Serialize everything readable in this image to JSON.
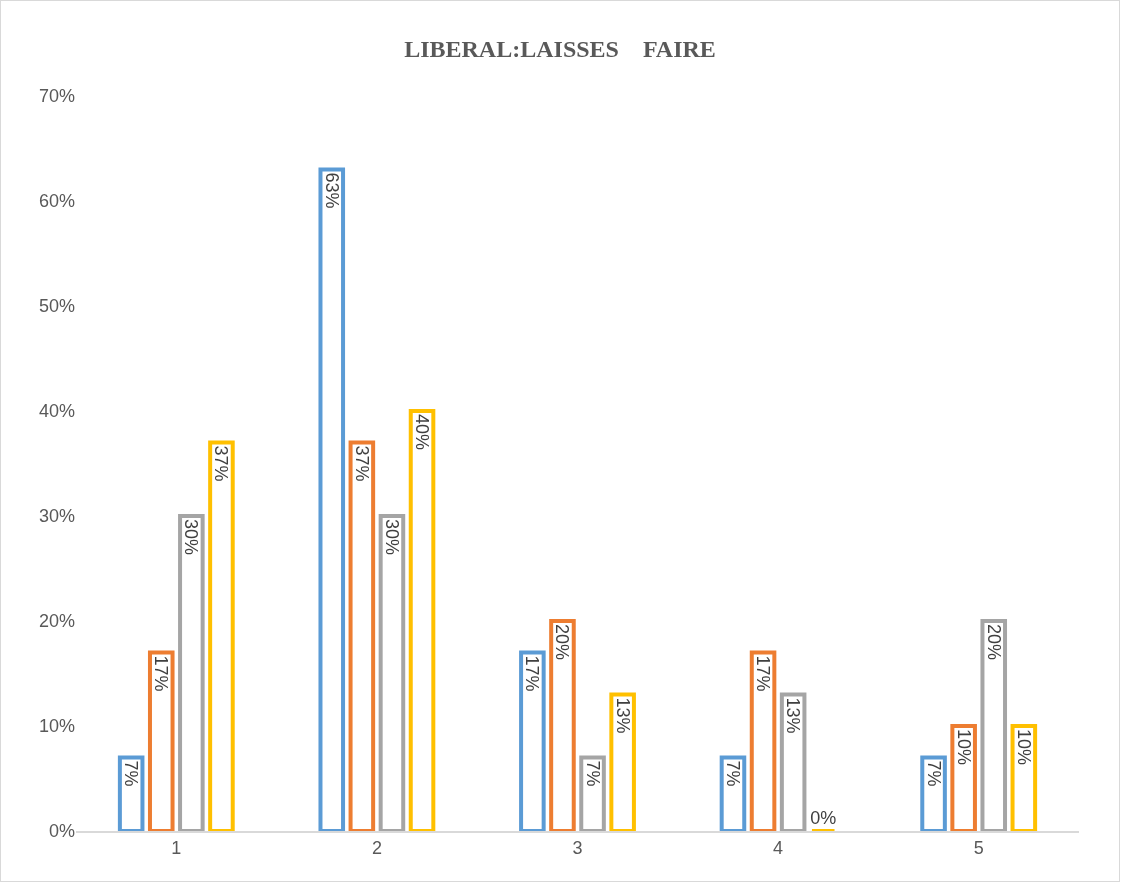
{
  "chart_data": {
    "type": "bar",
    "title": "LIBERAL:LAISSES    FAIRE",
    "categories": [
      "1",
      "2",
      "3",
      "4",
      "5"
    ],
    "series": [
      {
        "color": "#5b9bd5",
        "values": [
          7,
          63,
          17,
          7,
          7
        ],
        "value_labels": [
          "7%",
          "63%",
          "17%",
          "7%",
          "7%"
        ]
      },
      {
        "color": "#ed7d31",
        "values": [
          17,
          37,
          20,
          17,
          10
        ],
        "value_labels": [
          "17%",
          "37%",
          "20%",
          "17%",
          "10%"
        ]
      },
      {
        "color": "#a5a5a5",
        "values": [
          30,
          30,
          7,
          13,
          20
        ],
        "value_labels": [
          "30%",
          "30%",
          "7%",
          "13%",
          "20%"
        ]
      },
      {
        "color": "#ffc000",
        "values": [
          37,
          40,
          13,
          0,
          10
        ],
        "value_labels": [
          "37%",
          "40%",
          "13%",
          "0%",
          "10%"
        ]
      }
    ],
    "ylim": [
      0,
      70
    ],
    "yticks": [
      {
        "value": 0,
        "label": "0%"
      },
      {
        "value": 10,
        "label": "10%"
      },
      {
        "value": 20,
        "label": "20%"
      },
      {
        "value": 30,
        "label": "30%"
      },
      {
        "value": 40,
        "label": "40%"
      },
      {
        "value": 50,
        "label": "50%"
      },
      {
        "value": 60,
        "label": "60%"
      },
      {
        "value": 70,
        "label": "70%"
      }
    ],
    "grid": false,
    "legend": false
  }
}
